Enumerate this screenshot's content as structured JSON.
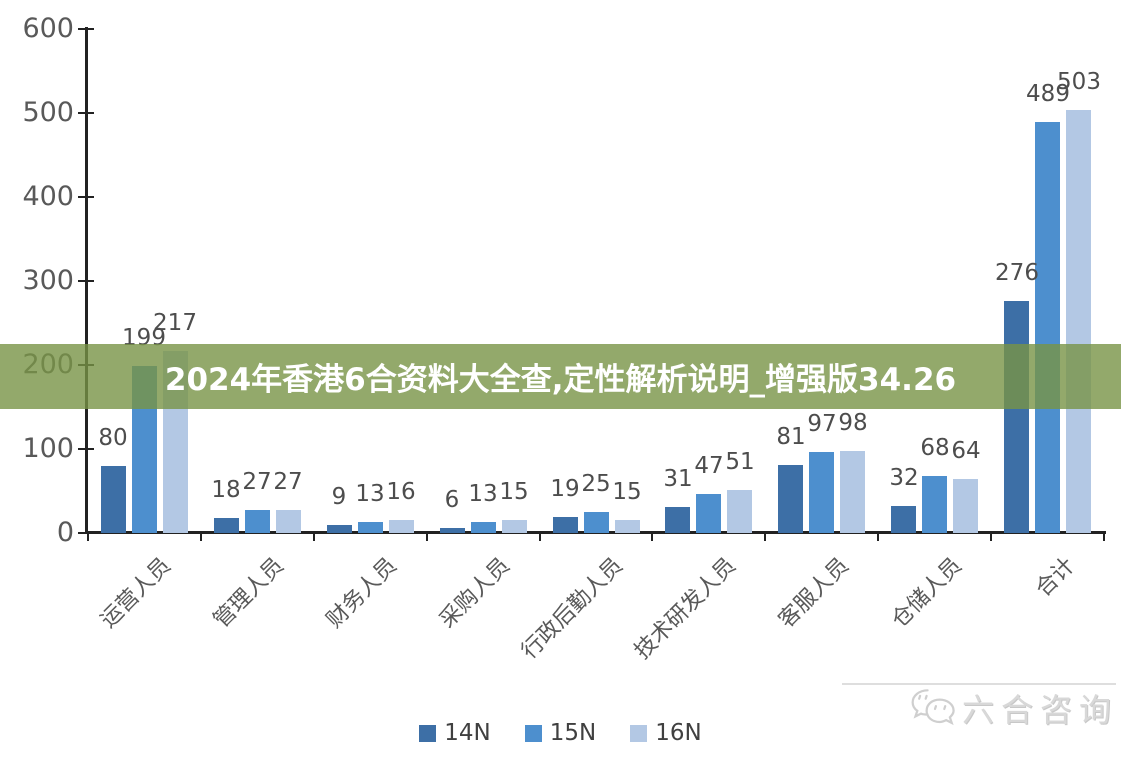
{
  "banner": {
    "text": "2024年香港6合资料大全查,定性解析说明_增强版34.26",
    "bg_color": "#93A968",
    "text_color": "#ffffff"
  },
  "watermark": {
    "text": "六合咨询",
    "icon": "wechat-chat-bubbles-icon",
    "color": "#d8d8d8"
  },
  "chart_data": {
    "type": "bar",
    "title": "",
    "xlabel": "",
    "ylabel": "",
    "categories": [
      "运营人员",
      "管理人员",
      "财务人员",
      "采购人员",
      "行政后勤人员",
      "技术研发人员",
      "客服人员",
      "仓储人员",
      "合计"
    ],
    "series": [
      {
        "name": "14N",
        "color": "#3D6FA6",
        "values": [
          80,
          18,
          9,
          6,
          19,
          31,
          81,
          32,
          276
        ]
      },
      {
        "name": "15N",
        "color": "#4D8FCE",
        "values": [
          199,
          27,
          13,
          13,
          25,
          47,
          97,
          68,
          489
        ]
      },
      {
        "name": "16N",
        "color": "#B3C8E4",
        "values": [
          217,
          27,
          16,
          15,
          15,
          51,
          98,
          64,
          503
        ]
      }
    ],
    "ylim": [
      0,
      600
    ],
    "yticks": [
      0,
      100,
      200,
      300,
      400,
      500,
      600
    ],
    "grid": false,
    "legend_position": "bottom",
    "axis_color": "#222222",
    "label_color": "#595959"
  }
}
